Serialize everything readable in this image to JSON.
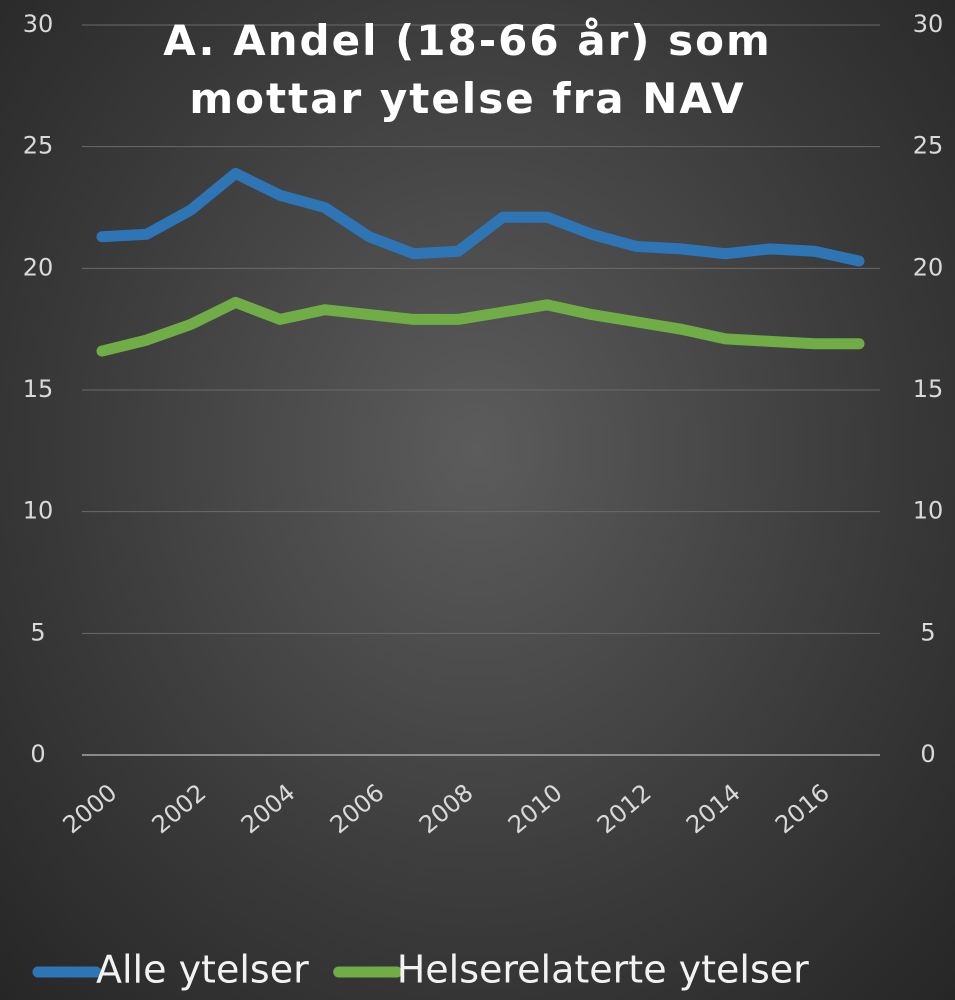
{
  "chart_data": {
    "type": "line",
    "title": "A. Andel (18-66 år) som mottar ytelse fra NAV",
    "categories": [
      "2000",
      null,
      "2002",
      null,
      "2004",
      null,
      "2006",
      null,
      "2008",
      null,
      "2010",
      null,
      "2012",
      null,
      "2014",
      null,
      "2016",
      null
    ],
    "series": [
      {
        "name": "Alle ytelser",
        "color": "#2e75b6",
        "values": [
          21.3,
          21.4,
          22.4,
          23.9,
          23.0,
          22.5,
          21.3,
          20.6,
          20.7,
          22.1,
          22.1,
          21.4,
          20.9,
          20.8,
          20.6,
          20.8,
          20.7,
          20.3
        ]
      },
      {
        "name": "Helserelaterte ytelser",
        "color": "#70ad47",
        "values": [
          16.6,
          17.05,
          17.7,
          18.6,
          17.9,
          18.3,
          18.1,
          17.9,
          17.9,
          18.2,
          18.5,
          18.1,
          17.8,
          17.5,
          17.1,
          17.0,
          16.9,
          16.9
        ]
      }
    ],
    "ylim": [
      0,
      30
    ],
    "yticks": [
      0,
      5,
      10,
      15,
      20,
      25,
      30
    ],
    "y2lim": [
      0,
      30
    ],
    "y2ticks": [
      0,
      5,
      10,
      15,
      20,
      25,
      30
    ],
    "grid": true,
    "legend": "bottom"
  }
}
